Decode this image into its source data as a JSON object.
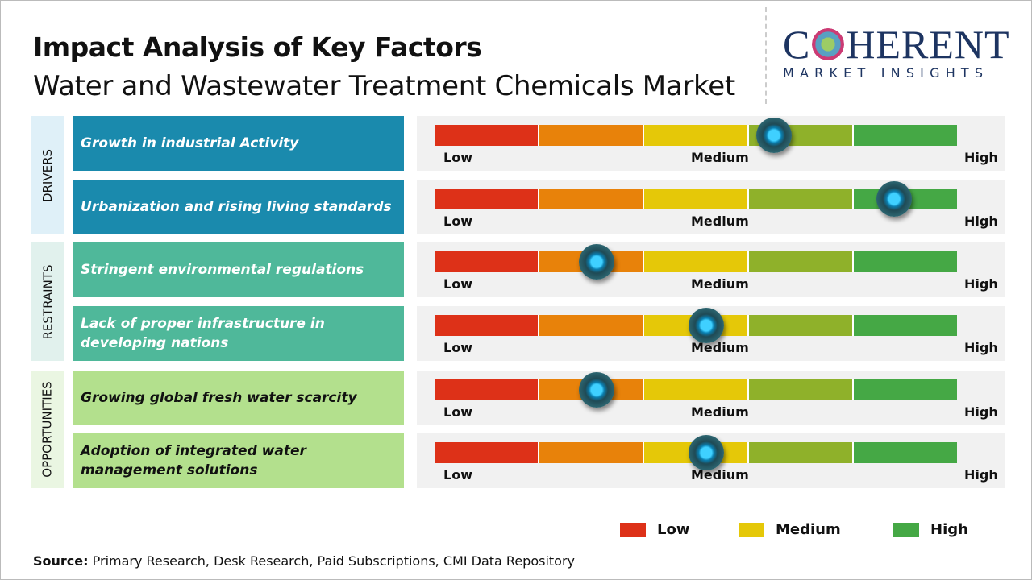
{
  "header": {
    "title": "Impact Analysis of Key Factors",
    "subtitle": "Water and Wastewater Treatment Chemicals Market"
  },
  "logo": {
    "main_left": "C",
    "main_right": "HERENT",
    "sub": "MARKET INSIGHTS"
  },
  "categories": [
    {
      "label": "DRIVERS"
    },
    {
      "label": "RESTRAINTS"
    },
    {
      "label": "OPPORTUNITIES"
    }
  ],
  "scale": {
    "low": "Low",
    "medium": "Medium",
    "high": "High",
    "segment_colors": [
      "#dd3118",
      "#e8820a",
      "#e5c808",
      "#8fb12a",
      "#45a845"
    ]
  },
  "factors": [
    {
      "category": "DRIVERS",
      "text": "Growth in industrial Activity",
      "impact_level": 0.65
    },
    {
      "category": "DRIVERS",
      "text": "Urbanization and rising living standards",
      "impact_level": 0.88
    },
    {
      "category": "RESTRAINTS",
      "text": "Stringent environmental regulations",
      "impact_level": 0.31
    },
    {
      "category": "RESTRAINTS",
      "text": "Lack of proper infrastructure in developing nations",
      "impact_level": 0.52
    },
    {
      "category": "OPPORTUNITIES",
      "text": "Growing global fresh water scarcity",
      "impact_level": 0.31
    },
    {
      "category": "OPPORTUNITIES",
      "text": "Adoption of integrated water management solutions",
      "impact_level": 0.52
    }
  ],
  "legend": [
    {
      "label": "Low",
      "color": "#dd3118"
    },
    {
      "label": "Medium",
      "color": "#e5c808"
    },
    {
      "label": "High",
      "color": "#45a845"
    }
  ],
  "source": {
    "label": "Source:",
    "text": " Primary Research, Desk Research, Paid Subscriptions, CMI Data Repository"
  }
}
